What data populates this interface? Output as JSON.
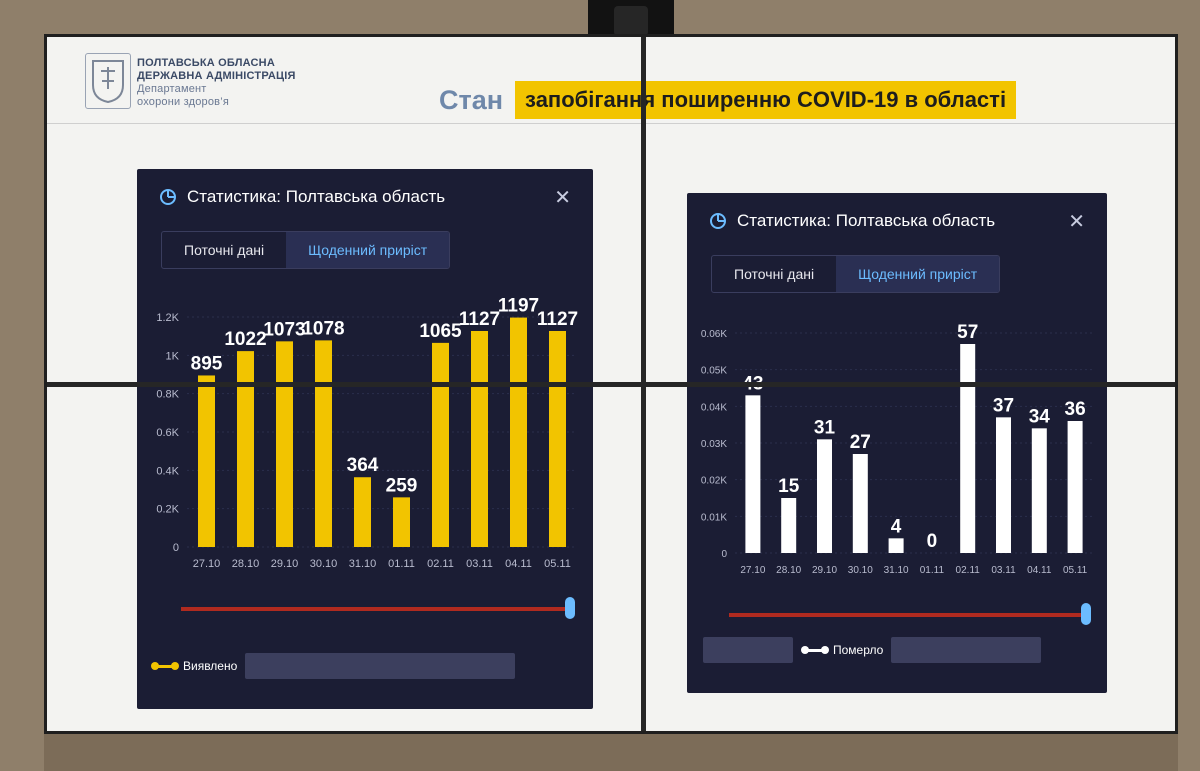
{
  "header": {
    "org_line1": "ПОЛТАВСЬКА ОБЛАСНА",
    "org_line2": "ДЕРЖАВНА АДМІНІСТРАЦІЯ",
    "dept_line1": "Департамент",
    "dept_line2": "охорони здоров’я",
    "title_prefix": "Стан",
    "title_highlight": "запобігання поширенню COVID-19 в області",
    "title_highlight_color": "#f2c400"
  },
  "panels": [
    {
      "title": "Статистика: Полтавська область",
      "tabs": [
        "Поточні дані",
        "Щоденний приріст"
      ],
      "active_tab": 1,
      "legend_label": "Виявлено",
      "color": "#f2c400"
    },
    {
      "title": "Статистика: Полтавська область",
      "tabs": [
        "Поточні дані",
        "Щоденний приріст"
      ],
      "active_tab": 1,
      "legend_label": "Померло",
      "color": "#ffffff"
    }
  ],
  "chart_data": [
    {
      "type": "bar",
      "categories": [
        "27.10",
        "28.10",
        "29.10",
        "30.10",
        "31.10",
        "01.11",
        "02.11",
        "03.11",
        "04.11",
        "05.11"
      ],
      "values": [
        895,
        1022,
        1073,
        1078,
        364,
        259,
        1065,
        1127,
        1197,
        1127
      ],
      "data_labels": [
        "895",
        "1022",
        "1073",
        "1078",
        "364",
        "259",
        "1065",
        "1127",
        "1197",
        "1127"
      ],
      "yticks": [
        0,
        200,
        400,
        600,
        800,
        1000,
        1200
      ],
      "ytick_labels": [
        "0",
        "0.2K",
        "0.4K",
        "0.6K",
        "0.8K",
        "1K",
        "1.2K"
      ],
      "ylim": [
        0,
        1200
      ],
      "legend": [
        "Виявлено"
      ],
      "color": "#f2c400",
      "grid": true
    },
    {
      "type": "bar",
      "categories": [
        "27.10",
        "28.10",
        "29.10",
        "30.10",
        "31.10",
        "01.11",
        "02.11",
        "03.11",
        "04.11",
        "05.11"
      ],
      "values": [
        43,
        15,
        31,
        27,
        4,
        0,
        57,
        37,
        34,
        36
      ],
      "data_labels": [
        "43",
        "15",
        "31",
        "27",
        "4",
        "0",
        "57",
        "37",
        "34",
        "36"
      ],
      "yticks": [
        0,
        10,
        20,
        30,
        40,
        50,
        60
      ],
      "ytick_labels": [
        "0",
        "0.01K",
        "0.02K",
        "0.03K",
        "0.04K",
        "0.05K",
        "0.06K"
      ],
      "ylim": [
        0,
        60
      ],
      "legend": [
        "Померло"
      ],
      "color": "#ffffff",
      "grid": true
    }
  ]
}
